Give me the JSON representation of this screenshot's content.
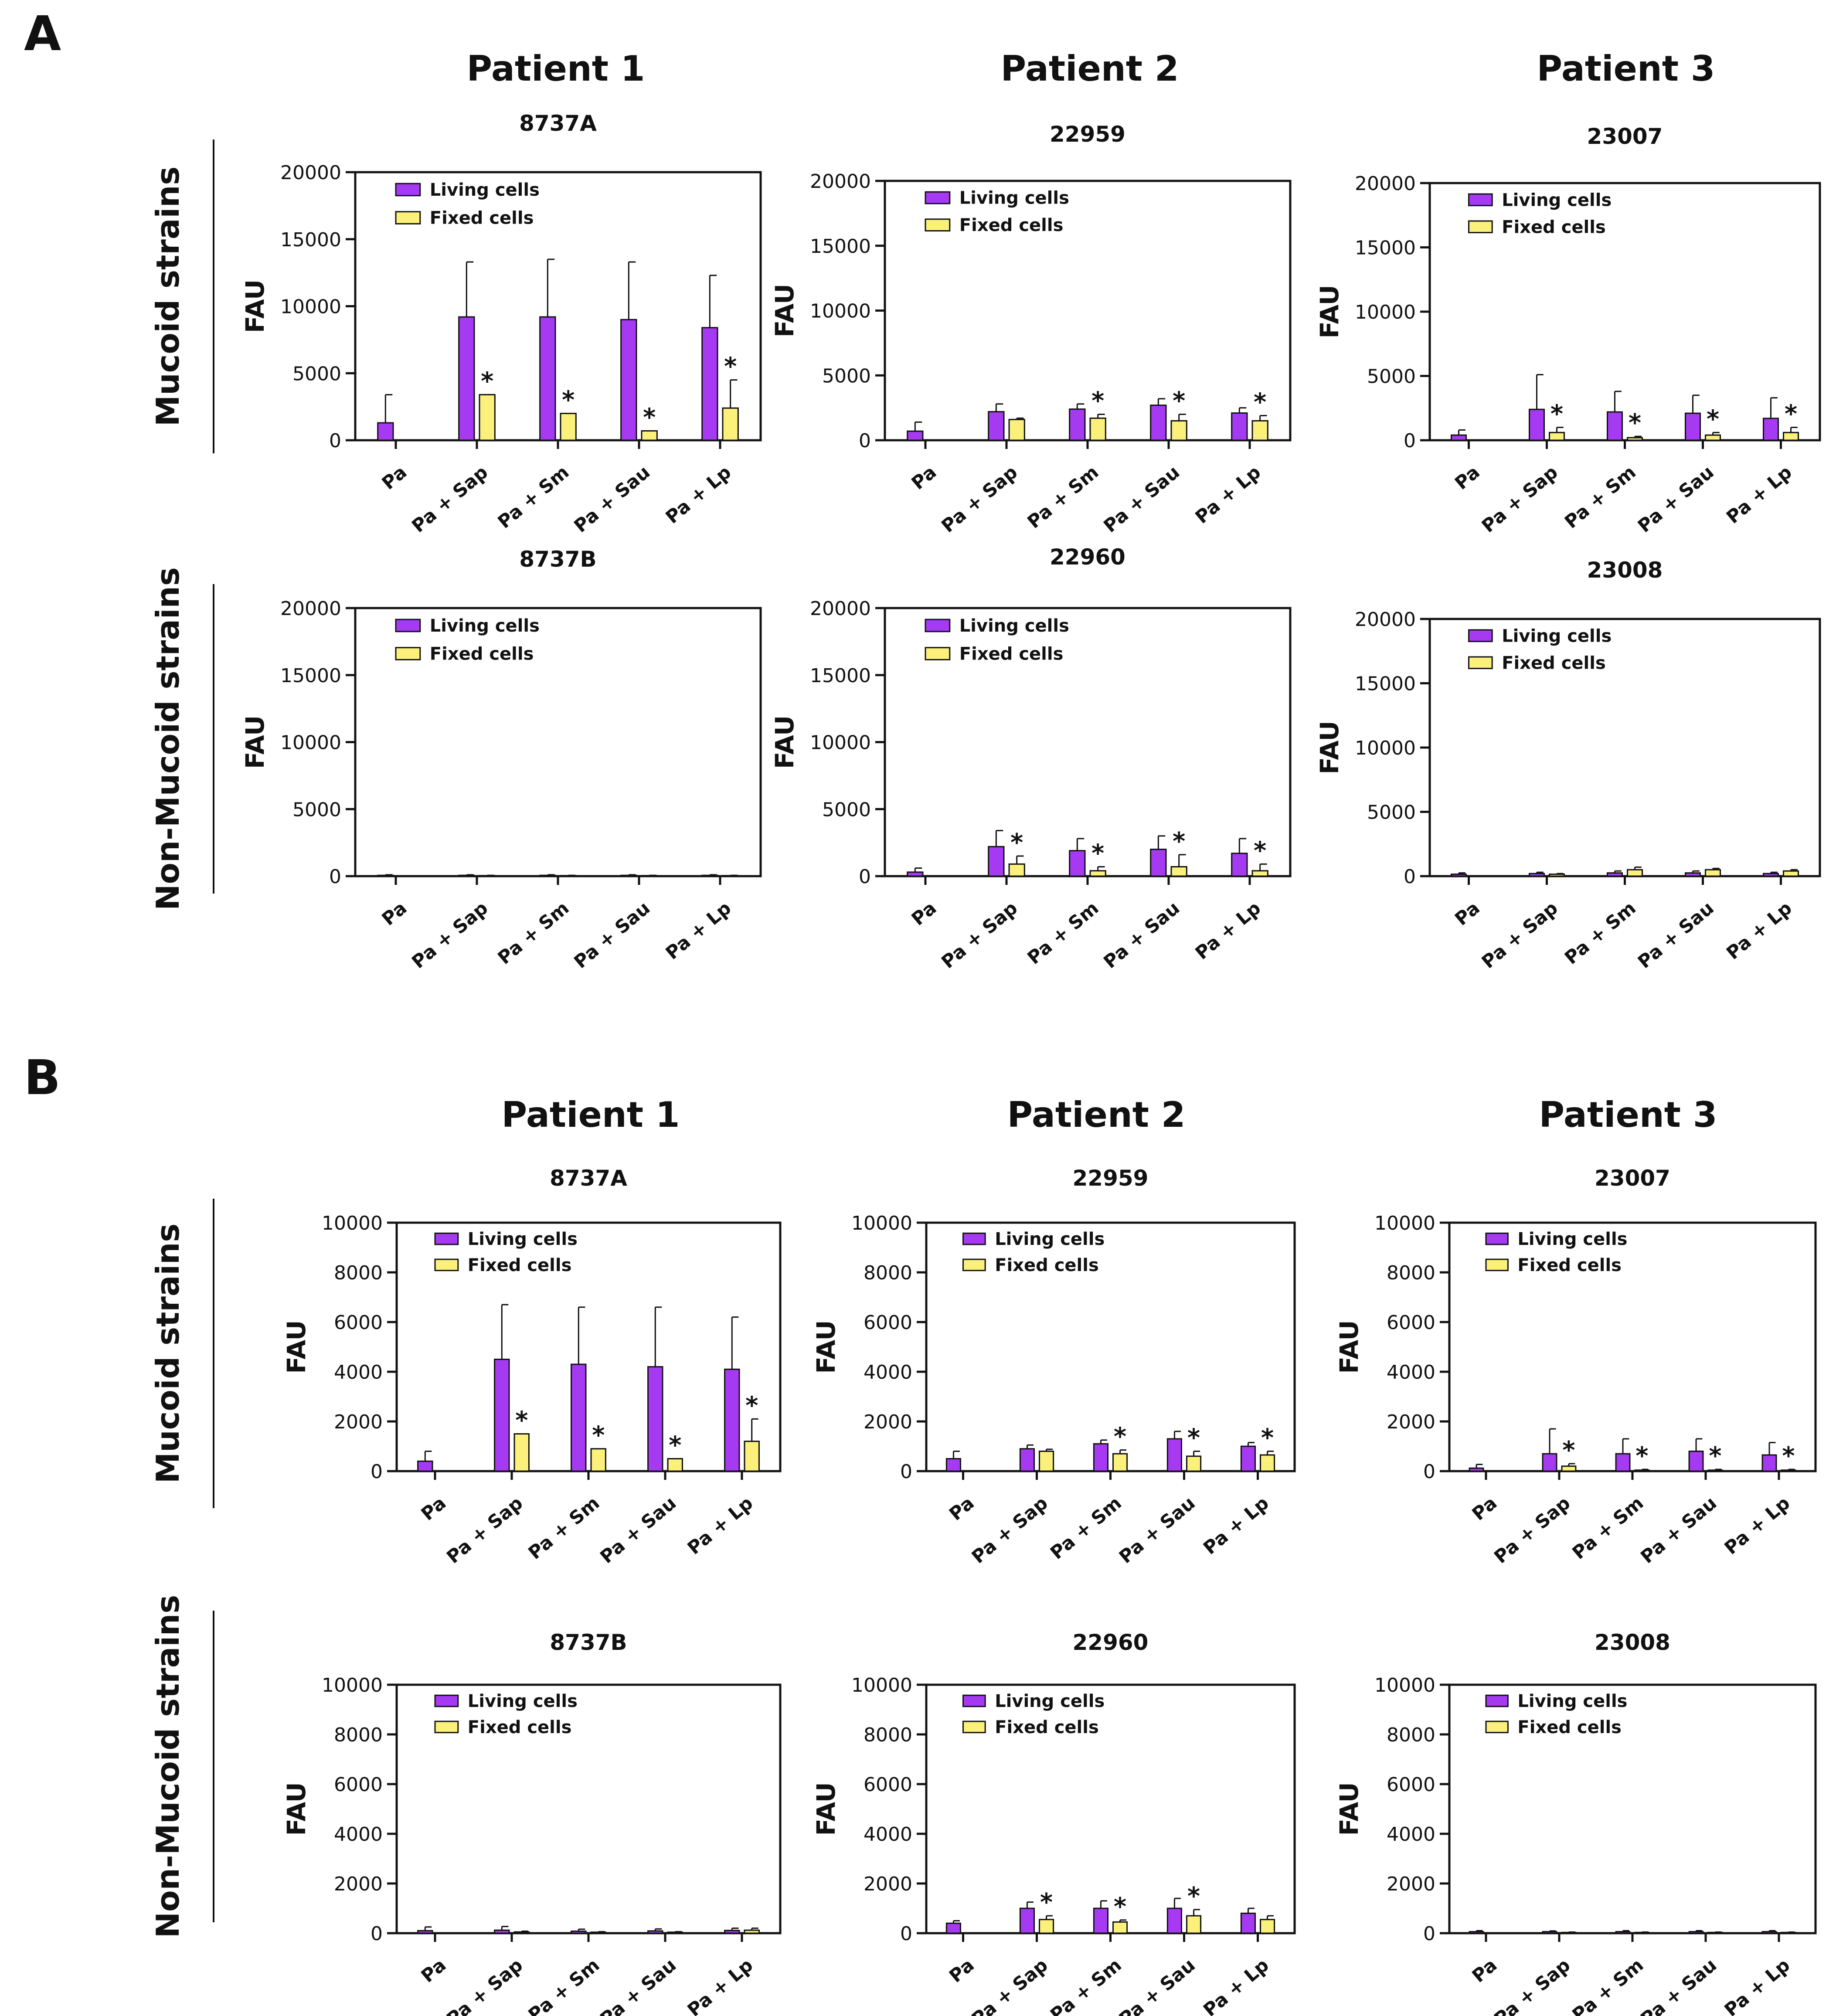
{
  "colors": {
    "living": "#a53af2",
    "fixed": "#fbf07a",
    "axis": "#111111"
  },
  "legend": {
    "living": "Living cells",
    "fixed": "Fixed cells"
  },
  "categories": [
    "Pa",
    "Pa + Sap",
    "Pa + Sm",
    "Pa + Sau",
    "Pa + Lp"
  ],
  "ylabel": "FAU",
  "star": "*",
  "panels": [
    {
      "letter": "A",
      "patients": [
        "Patient 1",
        "Patient 2",
        "Patient 3"
      ],
      "rows": [
        "Mucoid strains",
        "Non-Mucoid strains"
      ],
      "ylim": [
        0,
        20000
      ],
      "yticks": [
        "0",
        "5000",
        "10000",
        "15000",
        "20000"
      ]
    },
    {
      "letter": "B",
      "patients": [
        "Patient 1",
        "Patient 2",
        "Patient 3"
      ],
      "rows": [
        "Mucoid strains",
        "Non-Mucoid strains"
      ],
      "ylim": [
        0,
        10000
      ],
      "yticks": [
        "0",
        "2000",
        "4000",
        "6000",
        "8000",
        "10000"
      ]
    }
  ],
  "chart_data": [
    {
      "type": "bar",
      "panel": "A",
      "patient": "Patient 1",
      "row": "Mucoid strains",
      "title": "8737A",
      "xlabel": "",
      "ylabel": "FAU",
      "ylim": [
        0,
        20000
      ],
      "categories": [
        "Pa",
        "Pa + Sap",
        "Pa + Sm",
        "Pa + Sau",
        "Pa + Lp"
      ],
      "series": [
        {
          "name": "Living cells",
          "values": [
            1300,
            9200,
            9200,
            9000,
            8400
          ],
          "errors": [
            2100,
            4100,
            4300,
            4300,
            3900
          ],
          "stars": [
            false,
            false,
            false,
            false,
            false
          ]
        },
        {
          "name": "Fixed cells",
          "values": [
            0,
            3400,
            2000,
            700,
            2400
          ],
          "errors": [
            0,
            0,
            0,
            0,
            2100
          ],
          "stars": [
            false,
            true,
            true,
            true,
            true
          ]
        }
      ]
    },
    {
      "type": "bar",
      "panel": "A",
      "patient": "Patient 2",
      "row": "Mucoid strains",
      "title": "22959",
      "xlabel": "",
      "ylabel": "FAU",
      "ylim": [
        0,
        20000
      ],
      "categories": [
        "Pa",
        "Pa + Sap",
        "Pa + Sm",
        "Pa + Sau",
        "Pa + Lp"
      ],
      "series": [
        {
          "name": "Living cells",
          "values": [
            700,
            2200,
            2400,
            2700,
            2100
          ],
          "errors": [
            700,
            600,
            400,
            500,
            400
          ],
          "stars": [
            false,
            false,
            false,
            false,
            false
          ]
        },
        {
          "name": "Fixed cells",
          "values": [
            0,
            1600,
            1700,
            1500,
            1500
          ],
          "errors": [
            0,
            100,
            300,
            500,
            400
          ],
          "stars": [
            false,
            false,
            true,
            true,
            true
          ]
        }
      ]
    },
    {
      "type": "bar",
      "panel": "A",
      "patient": "Patient 3",
      "row": "Mucoid strains",
      "title": "23007",
      "xlabel": "",
      "ylabel": "FAU",
      "ylim": [
        0,
        20000
      ],
      "categories": [
        "Pa",
        "Pa + Sap",
        "Pa + Sm",
        "Pa + Sau",
        "Pa + Lp"
      ],
      "series": [
        {
          "name": "Living cells",
          "values": [
            400,
            2400,
            2200,
            2100,
            1700
          ],
          "errors": [
            400,
            2700,
            1600,
            1400,
            1600
          ],
          "stars": [
            false,
            false,
            false,
            false,
            false
          ]
        },
        {
          "name": "Fixed cells",
          "values": [
            0,
            600,
            200,
            400,
            600
          ],
          "errors": [
            0,
            400,
            100,
            200,
            400
          ],
          "stars": [
            false,
            true,
            true,
            true,
            true
          ]
        }
      ]
    },
    {
      "type": "bar",
      "panel": "A",
      "patient": "Patient 1",
      "row": "Non-Mucoid strains",
      "title": "8737B",
      "xlabel": "",
      "ylabel": "FAU",
      "ylim": [
        0,
        20000
      ],
      "categories": [
        "Pa",
        "Pa + Sap",
        "Pa + Sm",
        "Pa + Sau",
        "Pa + Lp"
      ],
      "series": [
        {
          "name": "Living cells",
          "values": [
            60,
            60,
            60,
            60,
            60
          ],
          "errors": [
            40,
            40,
            40,
            40,
            40
          ],
          "stars": [
            false,
            false,
            false,
            false,
            false
          ]
        },
        {
          "name": "Fixed cells",
          "values": [
            0,
            40,
            40,
            40,
            40
          ],
          "errors": [
            0,
            20,
            20,
            20,
            20
          ],
          "stars": [
            false,
            false,
            false,
            false,
            false
          ]
        }
      ]
    },
    {
      "type": "bar",
      "panel": "A",
      "patient": "Patient 2",
      "row": "Non-Mucoid strains",
      "title": "22960",
      "xlabel": "",
      "ylabel": "FAU",
      "ylim": [
        0,
        20000
      ],
      "categories": [
        "Pa",
        "Pa + Sap",
        "Pa + Sm",
        "Pa + Sau",
        "Pa + Lp"
      ],
      "series": [
        {
          "name": "Living cells",
          "values": [
            300,
            2200,
            1900,
            2000,
            1700
          ],
          "errors": [
            300,
            1200,
            900,
            1000,
            1100
          ],
          "stars": [
            false,
            false,
            false,
            false,
            false
          ]
        },
        {
          "name": "Fixed cells",
          "values": [
            0,
            900,
            400,
            700,
            400
          ],
          "errors": [
            0,
            600,
            300,
            900,
            500
          ],
          "stars": [
            false,
            true,
            true,
            true,
            true
          ]
        }
      ]
    },
    {
      "type": "bar",
      "panel": "A",
      "patient": "Patient 3",
      "row": "Non-Mucoid strains",
      "title": "23008",
      "xlabel": "",
      "ylabel": "FAU",
      "ylim": [
        0,
        20000
      ],
      "categories": [
        "Pa",
        "Pa + Sap",
        "Pa + Sm",
        "Pa + Sau",
        "Pa + Lp"
      ],
      "series": [
        {
          "name": "Living cells",
          "values": [
            150,
            200,
            250,
            250,
            200
          ],
          "errors": [
            100,
            100,
            150,
            150,
            100
          ],
          "stars": [
            false,
            false,
            false,
            false,
            false
          ]
        },
        {
          "name": "Fixed cells",
          "values": [
            0,
            150,
            500,
            500,
            400
          ],
          "errors": [
            0,
            50,
            200,
            100,
            100
          ],
          "stars": [
            false,
            false,
            false,
            false,
            false
          ]
        }
      ]
    },
    {
      "type": "bar",
      "panel": "B",
      "patient": "Patient 1",
      "row": "Mucoid strains",
      "title": "8737A",
      "xlabel": "",
      "ylabel": "FAU",
      "ylim": [
        0,
        10000
      ],
      "categories": [
        "Pa",
        "Pa + Sap",
        "Pa + Sm",
        "Pa + Sau",
        "Pa + Lp"
      ],
      "series": [
        {
          "name": "Living cells",
          "values": [
            400,
            4500,
            4300,
            4200,
            4100
          ],
          "errors": [
            400,
            2200,
            2300,
            2400,
            2100
          ],
          "stars": [
            false,
            false,
            false,
            false,
            false
          ]
        },
        {
          "name": "Fixed cells",
          "values": [
            0,
            1500,
            900,
            500,
            1200
          ],
          "errors": [
            0,
            0,
            0,
            0,
            900
          ],
          "stars": [
            false,
            true,
            true,
            true,
            true
          ]
        }
      ]
    },
    {
      "type": "bar",
      "panel": "B",
      "patient": "Patient 2",
      "row": "Mucoid strains",
      "title": "22959",
      "xlabel": "",
      "ylabel": "FAU",
      "ylim": [
        0,
        10000
      ],
      "categories": [
        "Pa",
        "Pa + Sap",
        "Pa + Sm",
        "Pa + Sau",
        "Pa + Lp"
      ],
      "series": [
        {
          "name": "Living cells",
          "values": [
            500,
            900,
            1100,
            1300,
            1000
          ],
          "errors": [
            300,
            150,
            150,
            300,
            150
          ],
          "stars": [
            false,
            false,
            false,
            false,
            false
          ]
        },
        {
          "name": "Fixed cells",
          "values": [
            0,
            800,
            700,
            600,
            650
          ],
          "errors": [
            0,
            80,
            150,
            200,
            150
          ],
          "stars": [
            false,
            false,
            true,
            true,
            true
          ]
        }
      ]
    },
    {
      "type": "bar",
      "panel": "B",
      "patient": "Patient 3",
      "row": "Mucoid strains",
      "title": "23007",
      "xlabel": "",
      "ylabel": "FAU",
      "ylim": [
        0,
        10000
      ],
      "categories": [
        "Pa",
        "Pa + Sap",
        "Pa + Sm",
        "Pa + Sau",
        "Pa + Lp"
      ],
      "series": [
        {
          "name": "Living cells",
          "values": [
            120,
            700,
            700,
            800,
            650
          ],
          "errors": [
            150,
            1000,
            600,
            500,
            500
          ],
          "stars": [
            false,
            false,
            false,
            false,
            false
          ]
        },
        {
          "name": "Fixed cells",
          "values": [
            0,
            200,
            40,
            40,
            40
          ],
          "errors": [
            0,
            100,
            30,
            30,
            30
          ],
          "stars": [
            false,
            true,
            true,
            true,
            true
          ]
        }
      ]
    },
    {
      "type": "bar",
      "panel": "B",
      "patient": "Patient 1",
      "row": "Non-Mucoid strains",
      "title": "8737B",
      "xlabel": "",
      "ylabel": "FAU",
      "ylim": [
        0,
        10000
      ],
      "categories": [
        "Pa",
        "Pa + Sap",
        "Pa + Sm",
        "Pa + Sau",
        "Pa + Lp"
      ],
      "series": [
        {
          "name": "Living cells",
          "values": [
            100,
            120,
            80,
            90,
            110
          ],
          "errors": [
            150,
            150,
            80,
            80,
            90
          ],
          "stars": [
            false,
            false,
            false,
            false,
            false
          ]
        },
        {
          "name": "Fixed cells",
          "values": [
            0,
            50,
            40,
            40,
            120
          ],
          "errors": [
            0,
            30,
            20,
            20,
            80
          ],
          "stars": [
            false,
            false,
            false,
            false,
            false
          ]
        }
      ]
    },
    {
      "type": "bar",
      "panel": "B",
      "patient": "Patient 2",
      "row": "Non-Mucoid strains",
      "title": "22960",
      "xlabel": "",
      "ylabel": "FAU",
      "ylim": [
        0,
        10000
      ],
      "categories": [
        "Pa",
        "Pa + Sap",
        "Pa + Sm",
        "Pa + Sau",
        "Pa + Lp"
      ],
      "series": [
        {
          "name": "Living cells",
          "values": [
            400,
            1000,
            1000,
            1000,
            800
          ],
          "errors": [
            100,
            250,
            300,
            400,
            200
          ],
          "stars": [
            false,
            false,
            false,
            false,
            false
          ]
        },
        {
          "name": "Fixed cells",
          "values": [
            0,
            550,
            450,
            700,
            550
          ],
          "errors": [
            0,
            150,
            80,
            250,
            150
          ],
          "stars": [
            false,
            true,
            true,
            true,
            false
          ]
        }
      ]
    },
    {
      "type": "bar",
      "panel": "B",
      "patient": "Patient 3",
      "row": "Non-Mucoid strains",
      "title": "23008",
      "xlabel": "",
      "ylabel": "FAU",
      "ylim": [
        0,
        10000
      ],
      "categories": [
        "Pa",
        "Pa + Sap",
        "Pa + Sm",
        "Pa + Sau",
        "Pa + Lp"
      ],
      "series": [
        {
          "name": "Living cells",
          "values": [
            60,
            60,
            60,
            60,
            60
          ],
          "errors": [
            40,
            30,
            40,
            40,
            40
          ],
          "stars": [
            false,
            false,
            false,
            false,
            false
          ]
        },
        {
          "name": "Fixed cells",
          "values": [
            0,
            30,
            30,
            30,
            30
          ],
          "errors": [
            0,
            15,
            15,
            15,
            15
          ],
          "stars": [
            false,
            false,
            false,
            false,
            false
          ]
        }
      ]
    }
  ]
}
